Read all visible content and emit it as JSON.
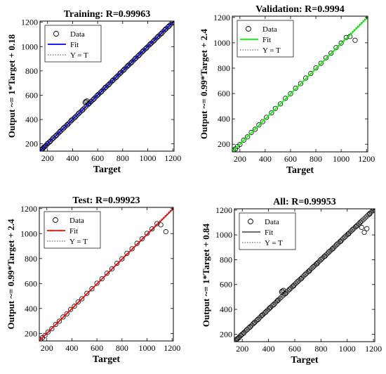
{
  "chart_data": [
    {
      "type": "scatter",
      "title": "Training: R=0.99963",
      "xlabel": "Target",
      "ylabel": "Output ~= 1*Target + 0.18",
      "xlim": [
        140,
        1210
      ],
      "ylim": [
        140,
        1210
      ],
      "xticks": [
        200,
        400,
        600,
        800,
        1000,
        1200
      ],
      "yticks": [
        200,
        400,
        600,
        800,
        1000,
        1200
      ],
      "fit": {
        "slope": 1.0,
        "intercept": 0.18
      },
      "fit_color": "#0000ff",
      "legend": {
        "placement": "top-left",
        "entries": [
          "Data",
          "Fit",
          "Y = T"
        ]
      },
      "series": [
        {
          "name": "Data",
          "x": [
            150,
            160,
            170,
            185,
            200,
            220,
            245,
            270,
            300,
            330,
            360,
            390,
            420,
            450,
            480,
            500,
            505,
            515,
            530,
            545,
            570,
            600,
            630,
            660,
            690,
            720,
            750,
            780,
            810,
            840,
            870,
            900,
            930,
            960,
            990,
            1020,
            1050,
            1080,
            1110,
            1140,
            1170,
            1200
          ],
          "y": [
            151,
            158,
            172,
            183,
            203,
            218,
            248,
            268,
            302,
            333,
            358,
            394,
            418,
            452,
            478,
            540,
            548,
            553,
            530,
            547,
            568,
            602,
            628,
            663,
            688,
            722,
            748,
            783,
            808,
            842,
            868,
            902,
            928,
            962,
            988,
            1022,
            1048,
            1082,
            1108,
            1142,
            1168,
            1201
          ]
        }
      ]
    },
    {
      "type": "scatter",
      "title": "Validation: R=0.9994",
      "xlabel": "Target",
      "ylabel": "Output ~= 0.99*Target + 2.4",
      "xlim": [
        140,
        1210
      ],
      "ylim": [
        140,
        1210
      ],
      "xticks": [
        200,
        400,
        600,
        800,
        1000,
        1200
      ],
      "yticks": [
        200,
        400,
        600,
        800,
        1000,
        1200
      ],
      "fit": {
        "slope": 0.99,
        "intercept": 2.4
      },
      "fit_color": "#00ff00",
      "legend": {
        "placement": "top-left",
        "entries": [
          "Data",
          "Fit",
          "Y = T"
        ]
      },
      "series": [
        {
          "name": "Data",
          "x": [
            150,
            165,
            180,
            200,
            230,
            260,
            290,
            320,
            350,
            380,
            410,
            450,
            480,
            520,
            560,
            600,
            640,
            680,
            720,
            760,
            800,
            840,
            880,
            920,
            960,
            1000,
            1040,
            1070,
            1110
          ],
          "y": [
            152,
            163,
            182,
            198,
            232,
            258,
            293,
            318,
            352,
            378,
            412,
            448,
            482,
            518,
            562,
            598,
            642,
            678,
            722,
            758,
            802,
            838,
            882,
            918,
            962,
            998,
            1042,
            1050,
            1020
          ]
        }
      ]
    },
    {
      "type": "scatter",
      "title": "Test: R=0.99923",
      "xlabel": "Target",
      "ylabel": "Output ~= 0.99*Target + 2.4",
      "xlim": [
        140,
        1210
      ],
      "ylim": [
        140,
        1210
      ],
      "xticks": [
        200,
        400,
        600,
        800,
        1000,
        1200
      ],
      "yticks": [
        200,
        400,
        600,
        800,
        1000,
        1200
      ],
      "fit": {
        "slope": 0.99,
        "intercept": 2.4
      },
      "fit_color": "#ff0000",
      "legend": {
        "placement": "top-left",
        "entries": [
          "Data",
          "Fit",
          "Y = T"
        ]
      },
      "series": [
        {
          "name": "Data",
          "x": [
            150,
            165,
            185,
            210,
            240,
            270,
            300,
            330,
            360,
            390,
            420,
            450,
            480,
            520,
            560,
            600,
            640,
            680,
            720,
            760,
            800,
            840,
            880,
            920,
            960,
            1000,
            1040,
            1080,
            1110,
            1150
          ],
          "y": [
            151,
            166,
            183,
            212,
            238,
            272,
            298,
            332,
            358,
            392,
            418,
            452,
            478,
            522,
            558,
            602,
            638,
            682,
            718,
            762,
            798,
            842,
            878,
            922,
            958,
            1002,
            1038,
            1080,
            1070,
            1015
          ]
        }
      ]
    },
    {
      "type": "scatter",
      "title": "All: R=0.99953",
      "xlabel": "Target",
      "ylabel": "Output ~= 1*Target + 0.84",
      "xlim": [
        140,
        1210
      ],
      "ylim": [
        140,
        1210
      ],
      "xticks": [
        200,
        400,
        600,
        800,
        1000,
        1200
      ],
      "yticks": [
        200,
        400,
        600,
        800,
        1000,
        1200
      ],
      "fit": {
        "slope": 1.0,
        "intercept": 0.84
      },
      "fit_color": "#595959",
      "legend": {
        "placement": "top-left",
        "entries": [
          "Data",
          "Fit",
          "Y = T"
        ]
      },
      "series": [
        {
          "name": "Data",
          "x": [
            150,
            160,
            175,
            190,
            210,
            235,
            260,
            290,
            320,
            350,
            380,
            410,
            440,
            470,
            500,
            505,
            515,
            530,
            560,
            590,
            620,
            650,
            680,
            710,
            740,
            770,
            800,
            830,
            860,
            890,
            920,
            950,
            980,
            1010,
            1040,
            1070,
            1100,
            1110,
            1130,
            1150,
            1170,
            1200
          ],
          "y": [
            150,
            162,
            173,
            192,
            208,
            237,
            258,
            292,
            318,
            352,
            378,
            412,
            438,
            472,
            540,
            548,
            553,
            528,
            562,
            588,
            622,
            648,
            682,
            708,
            742,
            768,
            802,
            828,
            862,
            888,
            922,
            948,
            982,
            1008,
            1042,
            1068,
            1102,
            1060,
            1020,
            1050,
            1168,
            1201
          ]
        }
      ]
    }
  ]
}
